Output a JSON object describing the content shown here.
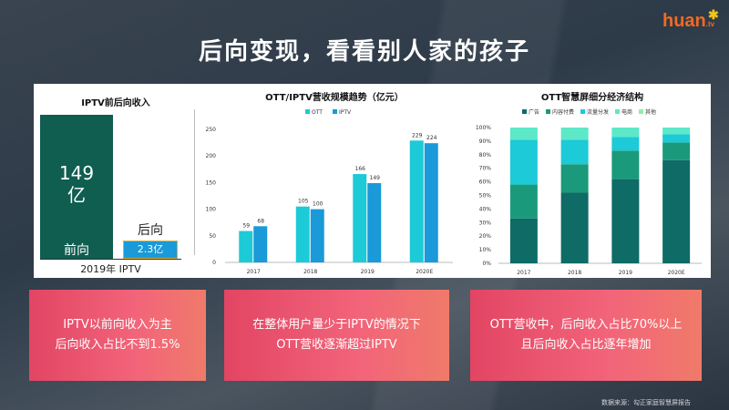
{
  "title": "后向变现，看看别人家的孩子",
  "logo": {
    "text": "huan",
    "suffix": ".tv"
  },
  "left": {
    "title": "IPTV前后向收入",
    "front_value": "149",
    "front_unit": "亿",
    "front_label": "前向",
    "back_label": "后向",
    "back_value": "2.3亿",
    "xlabel": "2019年  IPTV"
  },
  "chart_data": [
    {
      "type": "bar",
      "title": "OTT/IPTV营收规模趋势（亿元）",
      "categories": [
        "2017",
        "2018",
        "2019",
        "2020E"
      ],
      "series": [
        {
          "name": "OTT",
          "color": "#1ccad8",
          "values": [
            59,
            105,
            166,
            229
          ]
        },
        {
          "name": "IPTV",
          "color": "#1a9ad8",
          "values": [
            68,
            100,
            149,
            224
          ]
        }
      ],
      "ylim": [
        0,
        250
      ],
      "yticks": [
        0,
        50,
        100,
        150,
        200,
        250
      ],
      "legend": "top"
    },
    {
      "type": "bar",
      "stacked": true,
      "title": "OTT智慧屏细分经济结构",
      "categories": [
        "2017",
        "2018",
        "2019",
        "2020E"
      ],
      "series": [
        {
          "name": "广告",
          "color": "#0e6b66",
          "values": [
            33,
            52,
            62,
            76
          ]
        },
        {
          "name": "内容付费",
          "color": "#1a9a7a",
          "values": [
            25,
            21,
            21,
            13
          ]
        },
        {
          "name": "流量分发",
          "color": "#1ccad8",
          "values": [
            33,
            18,
            10,
            6
          ]
        },
        {
          "name": "电商",
          "color": "#5de8c8",
          "values": [
            9,
            9,
            7,
            5
          ]
        },
        {
          "name": "其他",
          "color": "#8ef0a8",
          "values": [
            0,
            0,
            0,
            0
          ]
        }
      ],
      "ylim": [
        0,
        100
      ],
      "yticks": [
        "0%",
        "10%",
        "20%",
        "30%",
        "40%",
        "50%",
        "60%",
        "70%",
        "80%",
        "90%",
        "100%"
      ],
      "legend": "top"
    }
  ],
  "cards": [
    {
      "line1": "IPTV以前向收入为主",
      "line2": "后向收入占比不到1.5%"
    },
    {
      "line1": "在整体用户量少于IPTV的情况下",
      "line2": "OTT营收逐渐超过IPTV"
    },
    {
      "line1": "OTT营收中，后向收入占比70%以上",
      "line2": "且后向收入占比逐年增加"
    }
  ],
  "source": "数据来源：勾正家庭智慧屏报告"
}
